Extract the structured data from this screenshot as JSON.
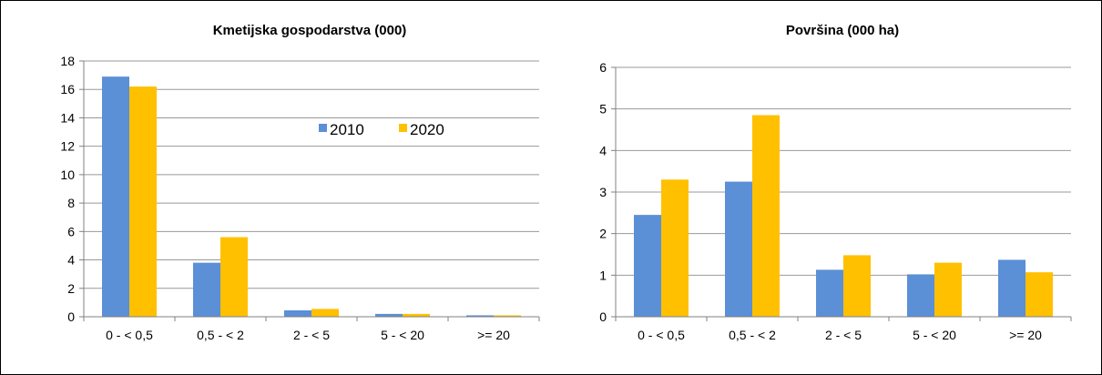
{
  "colors": {
    "series_2010": "#5B8FD6",
    "series_2020": "#FFC000",
    "grid": "#999999",
    "axis": "#808080",
    "frame": "#000000"
  },
  "chart_data": [
    {
      "type": "bar",
      "title": "Kmetijska gospodarstva (000)",
      "xlabel": "",
      "ylabel": "",
      "categories": [
        "0 - < 0,5",
        "0,5 - < 2",
        "2 - < 5",
        "5 - < 20",
        ">= 20"
      ],
      "ylim": [
        0,
        18
      ],
      "yticks": [
        "0",
        "2",
        "4",
        "6",
        "8",
        "10",
        "12",
        "14",
        "16",
        "18"
      ],
      "grid": true,
      "legend": "center",
      "series": [
        {
          "name": "2010",
          "values": [
            16.9,
            3.8,
            0.45,
            0.2,
            0.1
          ]
        },
        {
          "name": "2020",
          "values": [
            16.2,
            5.6,
            0.55,
            0.2,
            0.1
          ]
        }
      ]
    },
    {
      "type": "bar",
      "title": "Površina (000 ha)",
      "xlabel": "",
      "ylabel": "",
      "categories": [
        "0 - < 0,5",
        "0,5 - < 2",
        "2 - < 5",
        "5 - < 20",
        ">= 20"
      ],
      "ylim": [
        0,
        6
      ],
      "yticks": [
        "0",
        "1",
        "2",
        "3",
        "4",
        "5",
        "6"
      ],
      "grid": true,
      "legend": "none",
      "series": [
        {
          "name": "2010",
          "values": [
            2.45,
            3.25,
            1.13,
            1.02,
            1.37
          ]
        },
        {
          "name": "2020",
          "values": [
            3.3,
            4.85,
            1.48,
            1.3,
            1.07
          ]
        }
      ]
    }
  ]
}
